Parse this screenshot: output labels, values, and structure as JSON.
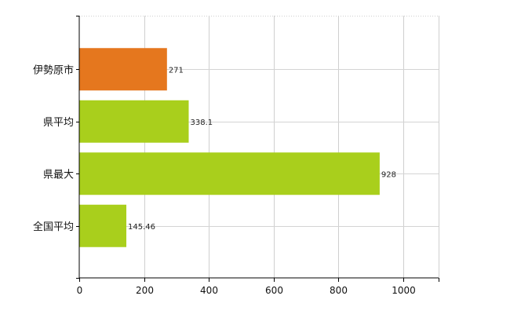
{
  "chart_data": {
    "type": "bar",
    "orientation": "horizontal",
    "categories": [
      "伊勢原市",
      "県平均",
      "県最大",
      "全国平均"
    ],
    "values": [
      271,
      338.1,
      928,
      145.46
    ],
    "data_labels": [
      "271",
      "338.1",
      "928",
      "145.46"
    ],
    "bar_colors": [
      "#e5771e",
      "#a9cf1c",
      "#a9cf1c",
      "#a9cf1c"
    ],
    "xlim": [
      0,
      1110
    ],
    "xticks": [
      0,
      200,
      400,
      600,
      800,
      1000
    ],
    "xtick_labels": [
      "0",
      "200",
      "400",
      "600",
      "800",
      "1000"
    ],
    "title": "",
    "xlabel": "",
    "ylabel": "",
    "grid": true,
    "legend": "none"
  }
}
